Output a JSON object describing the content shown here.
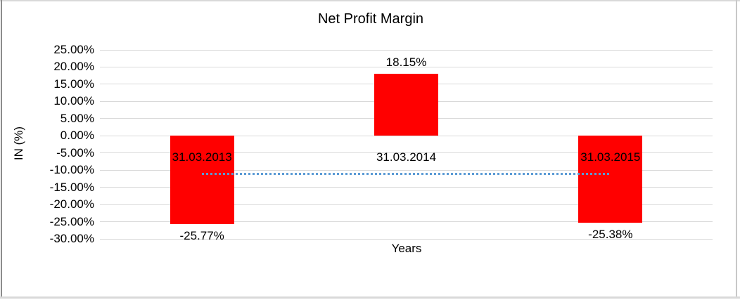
{
  "chart_data": {
    "type": "bar",
    "title": "Net Profit Margin",
    "xlabel": "Years",
    "ylabel": "IN (%)",
    "categories": [
      "31.03.2013",
      "31.03.2014",
      "31.03.2015"
    ],
    "values": [
      -25.77,
      18.15,
      -25.38
    ],
    "data_labels": [
      "-25.77%",
      "18.15%",
      "-25.38%"
    ],
    "ylim": [
      -30,
      25
    ],
    "ytick_step": 5,
    "ytick_labels": [
      "25.00%",
      "20.00%",
      "15.00%",
      "10.00%",
      "5.00%",
      "0.00%",
      "-5.00%",
      "-10.00%",
      "-15.00%",
      "-20.00%",
      "-25.00%",
      "-30.00%"
    ],
    "grid": "on",
    "legend": "none",
    "bar_color": "#FF0000",
    "gridline_color": "#D9D9D9",
    "text_color": "#000000",
    "trendline": {
      "style": "dotted",
      "color": "#5B9BD5",
      "value": -11.0
    }
  },
  "frame": {
    "top_color": "#D9D9D9",
    "left_color": "#8C8C8C",
    "right_color": "#C8C8C8",
    "bottom_color": "#D9D9D9"
  }
}
